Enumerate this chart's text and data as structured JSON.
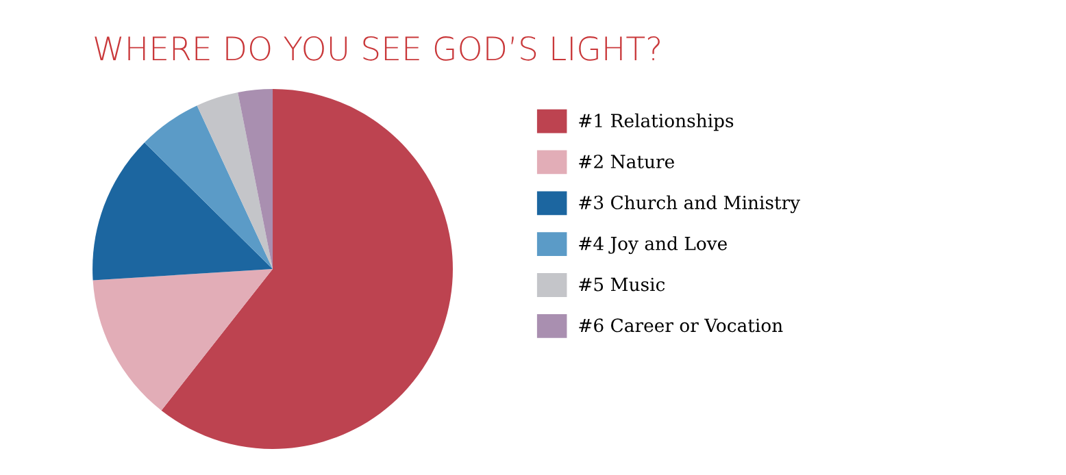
{
  "chart_data": {
    "type": "pie",
    "title": "WHERE DO YOU SEE GOD’S LIGHT?",
    "categories": [
      "#1 Relationships",
      "#2 Nature",
      "#3 Church and Ministry",
      "#4 Joy and Love",
      "#5 Music",
      "#6 Career or Vocation"
    ],
    "values": [
      60.6,
      13.4,
      13.4,
      5.7,
      3.8,
      3.1
    ],
    "colors": [
      "#bd4350",
      "#e2adb7",
      "#1c66a0",
      "#5b9bc7",
      "#c4c5c9",
      "#a98fb0"
    ],
    "legend": "right"
  }
}
